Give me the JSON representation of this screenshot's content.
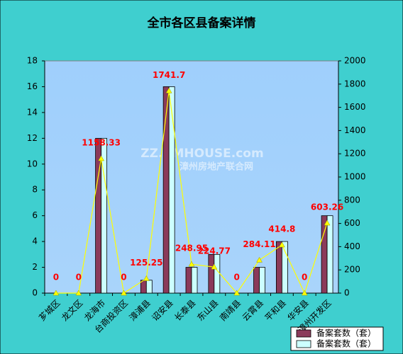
{
  "chart_data": {
    "type": "bar",
    "title": "全市各区县备案详情",
    "categories": [
      "芗城区",
      "龙文区",
      "龙海市",
      "台商投资区",
      "漳浦县",
      "诏安县",
      "长泰县",
      "东山县",
      "南靖县",
      "云霄县",
      "平和县",
      "华安县",
      "漳州开发区"
    ],
    "series": [
      {
        "name": "备案套数（套）",
        "color": "#8b3a5a",
        "values": [
          0,
          0,
          12,
          0,
          1,
          16,
          2,
          3,
          0,
          2,
          4,
          0,
          6
        ]
      },
      {
        "name": "备案套数（套）",
        "color": "#ccffff",
        "values": [
          0,
          0,
          12,
          0,
          1,
          16,
          2,
          3,
          0,
          2,
          4,
          0,
          6
        ]
      }
    ],
    "line": {
      "color": "#ffff00",
      "axis": "y2",
      "values": [
        0,
        0,
        1158.33,
        0,
        125.25,
        1741.7,
        248.95,
        224.77,
        0,
        284.11,
        414.8,
        0,
        603.26
      ]
    },
    "ylim": [
      0,
      18
    ],
    "yticks": [
      0,
      2,
      4,
      6,
      8,
      10,
      12,
      14,
      16,
      18
    ],
    "y2lim": [
      0,
      2000
    ],
    "y2ticks": [
      0,
      200,
      400,
      600,
      800,
      1000,
      1200,
      1400,
      1600,
      1800,
      2000
    ],
    "watermark": [
      "ZZ.XMHOUSE.com",
      "漳州房地产联合网"
    ]
  }
}
